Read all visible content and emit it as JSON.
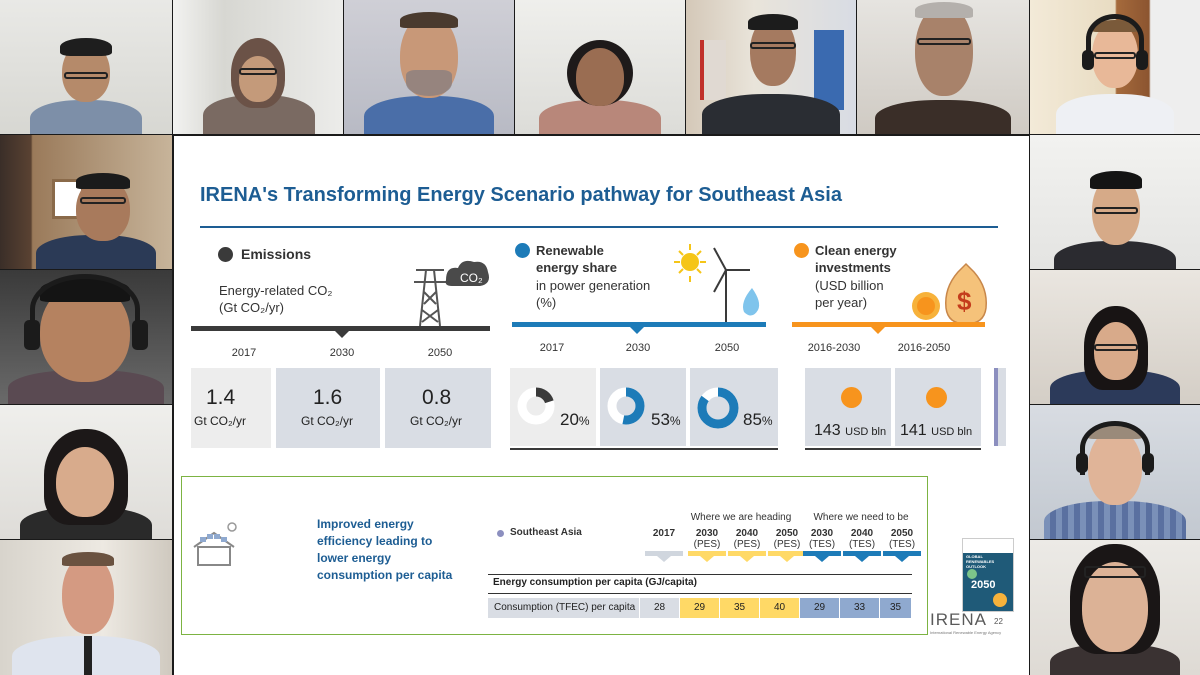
{
  "slide": {
    "title": "IRENA's Transforming Energy Scenario pathway for Southeast Asia",
    "emissions": {
      "heading": "Emissions",
      "subtitle_line1": "Energy-related CO₂",
      "subtitle_line2": "(Gt CO₂/yr)",
      "icon_text": "CO₂",
      "years": [
        "2017",
        "2030",
        "2050"
      ],
      "values": [
        "1.4",
        "1.6",
        "0.8"
      ],
      "unit": "Gt CO₂/yr"
    },
    "renewable": {
      "heading_line1": "Renewable",
      "heading_line2": "energy share",
      "sub_line1": "in power generation",
      "sub_line2": "(%)",
      "years": [
        "2017",
        "2030",
        "2050"
      ],
      "values": [
        "20",
        "53",
        "85"
      ],
      "shares": [
        0.2,
        0.53,
        0.85
      ],
      "unit": "%"
    },
    "investments": {
      "heading_line1": "Clean energy",
      "heading_line2": "investments",
      "sub_line1": "(USD billion",
      "sub_line2": "per year)",
      "periods": [
        "2016-2030",
        "2016-2050"
      ],
      "values": [
        "143",
        "141"
      ],
      "unit": "USD bln"
    },
    "efficiency": {
      "text_line1": "Improved energy",
      "text_line2": "efficiency leading to",
      "text_line3": "lower energy",
      "text_line4": "consumption per capita",
      "region": "Southeast Asia",
      "heading_pes": "Where we are heading",
      "heading_tes": "Where we need to be",
      "col_2017": "2017",
      "cols_pes": [
        [
          "2030",
          "(PES)"
        ],
        [
          "2040",
          "(PES)"
        ],
        [
          "2050",
          "(PES)"
        ]
      ],
      "cols_tes": [
        [
          "2030",
          "(TES)"
        ],
        [
          "2040",
          "(TES)"
        ],
        [
          "2050",
          "(TES)"
        ]
      ],
      "table_title": "Energy consumption per capita (GJ/capita)",
      "row_label": "Consumption (TFEC) per capita",
      "row_values": [
        "28",
        "29",
        "35",
        "40",
        "29",
        "33",
        "35"
      ]
    },
    "footer_logo": "IRENA",
    "footer_sub": "International Renewable Energy Agency",
    "page_number": "22",
    "book_text1": "GLOBAL",
    "book_text2": "RENEWABLES",
    "book_text3": "OUTLOOK",
    "book_year": "2050"
  },
  "colors": {
    "irena_blue": "#1d5d93",
    "renew_blue": "#1d7bb8",
    "invest_orange": "#f7941d",
    "pes_yellow": "#ffd966",
    "tes_blue": "#8fa9cf",
    "dark_gray": "#3a3a3a"
  }
}
